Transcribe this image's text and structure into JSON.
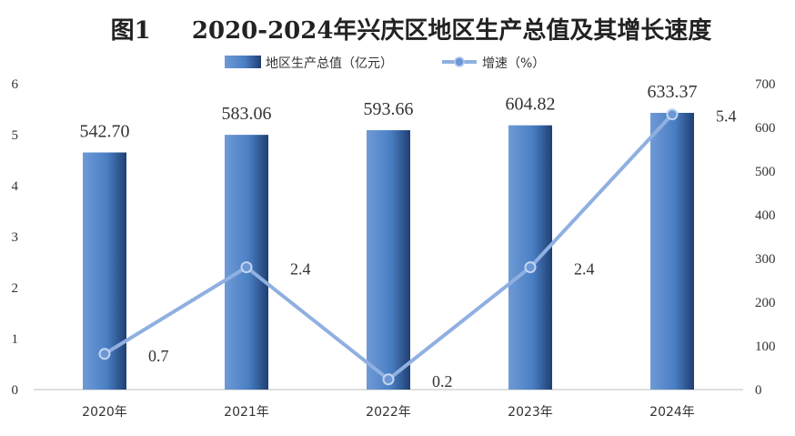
{
  "chart_data": {
    "type": "bar",
    "title": "图1     2020-2024年兴庆区地区生产总值及其增长速度",
    "categories": [
      "2020年",
      "2021年",
      "2022年",
      "2023年",
      "2024年"
    ],
    "series": [
      {
        "name": "地区生产总值（亿元）",
        "type": "bar",
        "axis": "right",
        "values": [
          542.7,
          583.06,
          593.66,
          604.82,
          633.37
        ],
        "labels": [
          "542.70",
          "583.06",
          "593.66",
          "604.82",
          "633.37"
        ],
        "color": "#4a7fc4"
      },
      {
        "name": "增速（%）",
        "type": "line",
        "axis": "left",
        "values": [
          0.7,
          2.4,
          0.2,
          2.4,
          5.4
        ],
        "labels": [
          "0.7",
          "2.4",
          "0.2",
          "2.4",
          "5.4"
        ],
        "color": "#8fb0e0"
      }
    ],
    "y_left": {
      "range": [
        0,
        6
      ],
      "ticks": [
        "0",
        "1",
        "2",
        "3",
        "4",
        "5",
        "6"
      ]
    },
    "y_right": {
      "range": [
        0,
        700
      ],
      "ticks": [
        "0",
        "100",
        "200",
        "300",
        "400",
        "500",
        "600",
        "700"
      ]
    },
    "legend_position": "top-center",
    "grid": false
  }
}
